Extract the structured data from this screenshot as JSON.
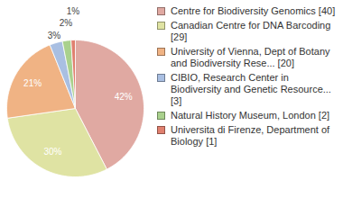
{
  "chart_data": {
    "type": "pie",
    "categories": [
      "Centre for Biodiversity Genomics [40]",
      "Canadian Centre for DNA Barcoding [29]",
      "University of Vienna, Dept of Botany and Biodiversity Rese... [20]",
      "CIBIO, Research Center in Biodiversity and Genetic Resource... [3]",
      "Natural History Museum, London [2]",
      "Universita di Firenze, Department of Biology [1]"
    ],
    "values": [
      42,
      30,
      21,
      3,
      2,
      1
    ],
    "value_labels": [
      "42%",
      "30%",
      "21%",
      "3%",
      "2%",
      "1%"
    ],
    "colors": [
      "#e0a9a2",
      "#dfe3a3",
      "#f0b384",
      "#a9bfe2",
      "#a9d18d",
      "#e0806f"
    ],
    "data_labels": true,
    "legend": "right"
  }
}
